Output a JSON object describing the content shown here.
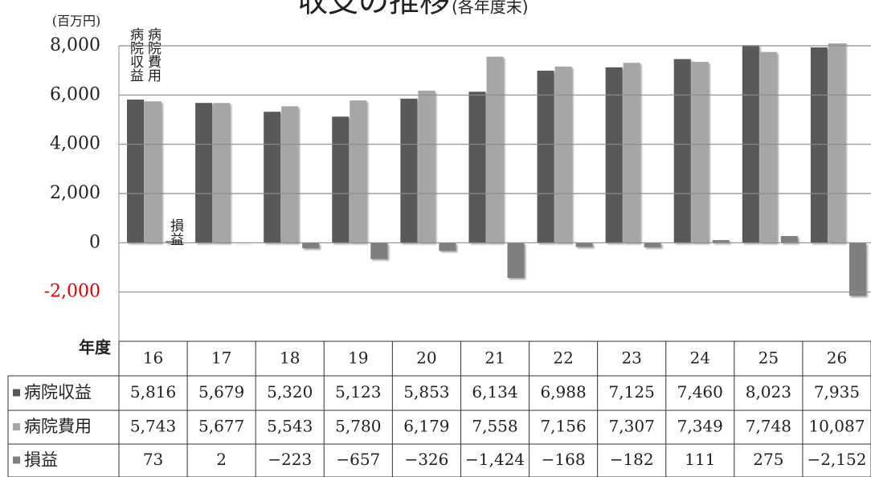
{
  "chart_data": {
    "type": "bar",
    "title": "収支の推移",
    "subtitle": "(各年度末)",
    "y_label": "(百万円)",
    "category_label": "年度",
    "categories": [
      "16",
      "17",
      "18",
      "19",
      "20",
      "21",
      "22",
      "23",
      "24",
      "25",
      "26"
    ],
    "series": [
      {
        "name": "病院収益",
        "color": "#595959",
        "values": [
          5816,
          5679,
          5320,
          5123,
          5853,
          6134,
          6988,
          7125,
          7460,
          8023,
          7935
        ],
        "value_labels": [
          "5,816",
          "5,679",
          "5,320",
          "5,123",
          "5,853",
          "6,134",
          "6,988",
          "7,125",
          "7,460",
          "8,023",
          "7,935"
        ]
      },
      {
        "name": "病院費用",
        "color": "#a6a6a6",
        "values": [
          5743,
          5677,
          5543,
          5780,
          6179,
          7558,
          7156,
          7307,
          7349,
          7748,
          10087
        ],
        "value_labels": [
          "5,743",
          "5,677",
          "5,543",
          "5,780",
          "6,179",
          "7,558",
          "7,156",
          "7,307",
          "7,349",
          "7,748",
          "10,087"
        ]
      },
      {
        "name": "損益",
        "color": "#7f7f7f",
        "values": [
          73,
          2,
          -223,
          -657,
          -326,
          -1424,
          -168,
          -182,
          111,
          275,
          -2152
        ],
        "value_labels": [
          "73",
          "2",
          "−223",
          "−657",
          "−326",
          "−1,424",
          "−168",
          "−182",
          "111",
          "275",
          "−2,152"
        ]
      }
    ],
    "ylim": [
      -4000,
      8000
    ],
    "yticks": [
      {
        "value": 8000,
        "label": "8,000"
      },
      {
        "value": 6000,
        "label": "6,000"
      },
      {
        "value": 4000,
        "label": "4,000"
      },
      {
        "value": 2000,
        "label": "2,000"
      },
      0,
      {
        "value": -2000,
        "label": "-2,000"
      }
    ],
    "negative_tick_color": "#e00000",
    "grid": true
  }
}
